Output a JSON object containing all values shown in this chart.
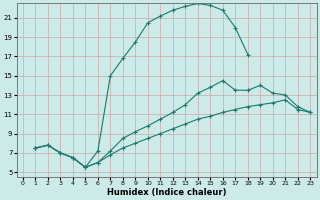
{
  "xlabel": "Humidex (Indice chaleur)",
  "bg_color": "#cceae7",
  "grid_color": "#c8a8a8",
  "line_color": "#1a7a6e",
  "xlim": [
    -0.5,
    23.5
  ],
  "ylim": [
    4.5,
    22.5
  ],
  "xticks": [
    0,
    1,
    2,
    3,
    4,
    5,
    6,
    7,
    8,
    9,
    10,
    11,
    12,
    13,
    14,
    15,
    16,
    17,
    18,
    19,
    20,
    21,
    22,
    23
  ],
  "yticks": [
    5,
    7,
    9,
    11,
    13,
    15,
    17,
    19,
    21
  ],
  "curve1_x": [
    1,
    2,
    3,
    4,
    5,
    6,
    7,
    8,
    9,
    10,
    11,
    12,
    13,
    14,
    15,
    16,
    17,
    18
  ],
  "curve1_y": [
    7.5,
    7.8,
    7.0,
    6.5,
    5.5,
    7.2,
    15.0,
    16.8,
    18.5,
    20.5,
    21.2,
    21.8,
    22.2,
    22.5,
    22.3,
    21.8,
    20.0,
    17.2
  ],
  "curve2_x": [
    1,
    2,
    3,
    4,
    5,
    6,
    7,
    8,
    9,
    10,
    11,
    12,
    13,
    14,
    15,
    16,
    17,
    18,
    19,
    20,
    21,
    22,
    23
  ],
  "curve2_y": [
    7.5,
    7.8,
    7.0,
    6.5,
    5.5,
    6.0,
    7.2,
    8.5,
    9.2,
    9.8,
    10.5,
    11.2,
    12.0,
    13.2,
    13.8,
    14.5,
    13.5,
    13.5,
    14.0,
    13.2,
    13.0,
    11.8,
    11.2
  ],
  "curve3_x": [
    1,
    2,
    3,
    4,
    5,
    6,
    7,
    8,
    9,
    10,
    11,
    12,
    13,
    14,
    15,
    16,
    17,
    18,
    19,
    20,
    21,
    22,
    23
  ],
  "curve3_y": [
    7.5,
    7.8,
    7.0,
    6.5,
    5.5,
    6.0,
    6.8,
    7.5,
    8.0,
    8.5,
    9.0,
    9.5,
    10.0,
    10.5,
    10.8,
    11.2,
    11.5,
    11.8,
    12.0,
    12.2,
    12.5,
    11.5,
    11.2
  ]
}
